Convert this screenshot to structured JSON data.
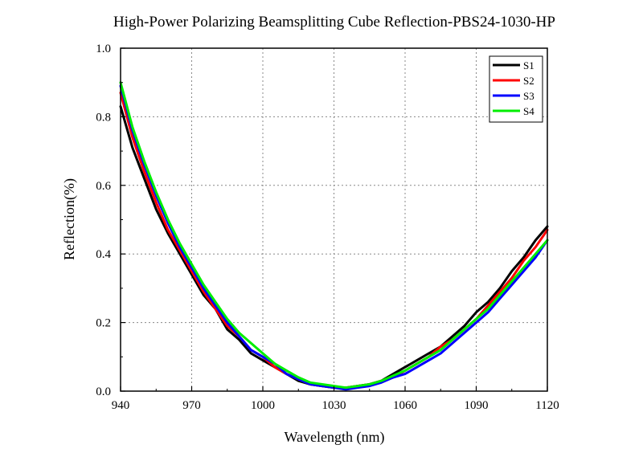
{
  "chart_data": {
    "type": "line",
    "title": "High-Power Polarizing Beamsplitting Cube Reflection-PBS24-1030-HP",
    "xlabel": "Wavelength (nm)",
    "ylabel": "Reflection(%)",
    "xlim": [
      940,
      1120
    ],
    "ylim": [
      0.0,
      1.0
    ],
    "xticks": [
      "940",
      "970",
      "1000",
      "1030",
      "1060",
      "1090",
      "1120"
    ],
    "yticks": [
      "0.0",
      "0.2",
      "0.4",
      "0.6",
      "0.8",
      "1.0"
    ],
    "grid": true,
    "legend_position": "top-right",
    "series": [
      {
        "name": "S1",
        "color": "#000000",
        "x": [
          940,
          945,
          950,
          955,
          960,
          965,
          970,
          975,
          980,
          985,
          990,
          995,
          1000,
          1005,
          1010,
          1015,
          1020,
          1025,
          1030,
          1035,
          1040,
          1045,
          1050,
          1055,
          1060,
          1065,
          1070,
          1075,
          1080,
          1085,
          1090,
          1095,
          1100,
          1105,
          1110,
          1115,
          1120
        ],
        "y": [
          0.83,
          0.71,
          0.62,
          0.53,
          0.46,
          0.4,
          0.34,
          0.28,
          0.24,
          0.18,
          0.15,
          0.11,
          0.09,
          0.07,
          0.05,
          0.03,
          0.02,
          0.015,
          0.01,
          0.01,
          0.015,
          0.02,
          0.03,
          0.05,
          0.07,
          0.09,
          0.11,
          0.13,
          0.16,
          0.19,
          0.23,
          0.26,
          0.3,
          0.35,
          0.39,
          0.44,
          0.48
        ]
      },
      {
        "name": "S2",
        "color": "#ff0000",
        "x": [
          940,
          945,
          950,
          955,
          960,
          965,
          970,
          975,
          980,
          985,
          990,
          995,
          1000,
          1005,
          1010,
          1015,
          1020,
          1025,
          1030,
          1035,
          1040,
          1045,
          1050,
          1055,
          1060,
          1065,
          1070,
          1075,
          1080,
          1085,
          1090,
          1095,
          1100,
          1105,
          1110,
          1115,
          1120
        ],
        "y": [
          0.87,
          0.74,
          0.64,
          0.55,
          0.47,
          0.41,
          0.35,
          0.29,
          0.24,
          0.19,
          0.16,
          0.12,
          0.1,
          0.07,
          0.05,
          0.035,
          0.02,
          0.015,
          0.01,
          0.01,
          0.015,
          0.02,
          0.03,
          0.04,
          0.06,
          0.08,
          0.1,
          0.13,
          0.15,
          0.18,
          0.21,
          0.25,
          0.29,
          0.33,
          0.38,
          0.42,
          0.47
        ]
      },
      {
        "name": "S3",
        "color": "#0000ff",
        "x": [
          940,
          945,
          950,
          955,
          960,
          965,
          970,
          975,
          980,
          985,
          990,
          995,
          1000,
          1005,
          1010,
          1015,
          1020,
          1025,
          1030,
          1035,
          1040,
          1045,
          1050,
          1055,
          1060,
          1065,
          1070,
          1075,
          1080,
          1085,
          1090,
          1095,
          1100,
          1105,
          1110,
          1115,
          1120
        ],
        "y": [
          0.89,
          0.76,
          0.66,
          0.57,
          0.49,
          0.42,
          0.36,
          0.3,
          0.25,
          0.2,
          0.16,
          0.12,
          0.1,
          0.08,
          0.05,
          0.035,
          0.02,
          0.015,
          0.01,
          0.005,
          0.01,
          0.015,
          0.025,
          0.04,
          0.05,
          0.07,
          0.09,
          0.11,
          0.14,
          0.17,
          0.2,
          0.23,
          0.27,
          0.31,
          0.35,
          0.39,
          0.44
        ]
      },
      {
        "name": "S4",
        "color": "#00ee00",
        "x": [
          940,
          945,
          950,
          955,
          960,
          965,
          970,
          975,
          980,
          985,
          990,
          995,
          1000,
          1005,
          1010,
          1015,
          1020,
          1025,
          1030,
          1035,
          1040,
          1045,
          1050,
          1055,
          1060,
          1065,
          1070,
          1075,
          1080,
          1085,
          1090,
          1095,
          1100,
          1105,
          1110,
          1115,
          1120
        ],
        "y": [
          0.9,
          0.77,
          0.67,
          0.58,
          0.5,
          0.43,
          0.37,
          0.31,
          0.26,
          0.21,
          0.17,
          0.14,
          0.11,
          0.08,
          0.06,
          0.04,
          0.025,
          0.02,
          0.015,
          0.01,
          0.015,
          0.02,
          0.03,
          0.045,
          0.06,
          0.08,
          0.1,
          0.12,
          0.15,
          0.18,
          0.21,
          0.24,
          0.28,
          0.32,
          0.36,
          0.4,
          0.44
        ]
      }
    ]
  }
}
